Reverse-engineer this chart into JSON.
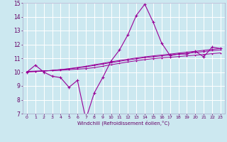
{
  "xlabel": "Windchill (Refroidissement éolien,°C)",
  "x_hours": [
    0,
    1,
    2,
    3,
    4,
    5,
    6,
    7,
    8,
    9,
    10,
    11,
    12,
    13,
    14,
    15,
    16,
    17,
    18,
    19,
    20,
    21,
    22,
    23
  ],
  "main_line": [
    10.0,
    10.5,
    10.0,
    9.7,
    9.6,
    8.9,
    9.4,
    6.6,
    8.5,
    9.6,
    10.8,
    11.6,
    12.7,
    14.1,
    14.9,
    13.6,
    12.1,
    11.2,
    11.3,
    11.3,
    11.5,
    11.1,
    11.8,
    11.7
  ],
  "smooth_line1": [
    10.05,
    10.07,
    10.09,
    10.11,
    10.13,
    10.17,
    10.21,
    10.25,
    10.32,
    10.42,
    10.53,
    10.63,
    10.73,
    10.82,
    10.9,
    10.97,
    11.02,
    11.07,
    11.12,
    11.17,
    11.22,
    11.27,
    11.33,
    11.38
  ],
  "smooth_line2": [
    10.02,
    10.05,
    10.08,
    10.12,
    10.17,
    10.23,
    10.3,
    10.38,
    10.48,
    10.58,
    10.68,
    10.78,
    10.87,
    10.96,
    11.04,
    11.11,
    11.17,
    11.23,
    11.3,
    11.36,
    11.42,
    11.48,
    11.55,
    11.6
  ],
  "smooth_line3": [
    10.0,
    10.03,
    10.07,
    10.12,
    10.18,
    10.25,
    10.33,
    10.42,
    10.53,
    10.63,
    10.74,
    10.84,
    10.93,
    11.02,
    11.1,
    11.17,
    11.23,
    11.3,
    11.37,
    11.44,
    11.5,
    11.57,
    11.64,
    11.7
  ],
  "line_color": "#990099",
  "bg_color": "#cce8f0",
  "grid_color": "#ffffff",
  "ylim": [
    7,
    15
  ],
  "xlim": [
    -0.5,
    23.5
  ],
  "yticks": [
    7,
    8,
    9,
    10,
    11,
    12,
    13,
    14,
    15
  ],
  "xticks": [
    0,
    1,
    2,
    3,
    4,
    5,
    6,
    7,
    8,
    9,
    10,
    11,
    12,
    13,
    14,
    15,
    16,
    17,
    18,
    19,
    20,
    21,
    22,
    23
  ]
}
